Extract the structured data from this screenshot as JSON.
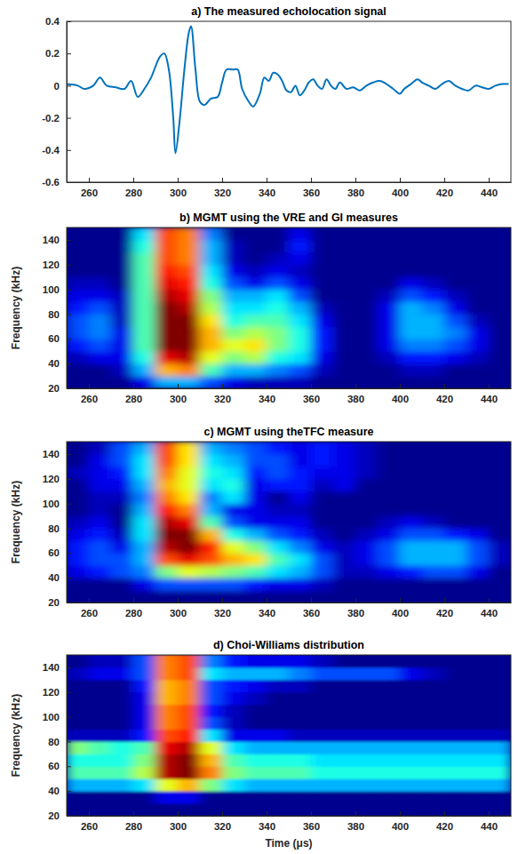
{
  "chart_data": [
    {
      "type": "line",
      "title": "a) The measured echolocation signal",
      "color": "#0072bd",
      "x": [
        250,
        255,
        258,
        262,
        265,
        268,
        272,
        276,
        279,
        282,
        285,
        288,
        292,
        294,
        296,
        298,
        299,
        301,
        303,
        305,
        306,
        308,
        310,
        312,
        315,
        318,
        320,
        322,
        325,
        327,
        329,
        332,
        334,
        337,
        339,
        341,
        343,
        345,
        347,
        349,
        351,
        353,
        355,
        357,
        359,
        361,
        363,
        365,
        367,
        369,
        371,
        373,
        376,
        379,
        382,
        385,
        388,
        391,
        394,
        397,
        400,
        402,
        405,
        408,
        410,
        413,
        416,
        419,
        422,
        425,
        428,
        431,
        434,
        437,
        440,
        443,
        446,
        449
      ],
      "values": [
        0.01,
        0,
        -0.02,
        0,
        0.05,
        0,
        -0.01,
        -0.02,
        0.03,
        -0.07,
        -0.02,
        0.05,
        0.18,
        0.2,
        0.1,
        -0.2,
        -0.42,
        -0.2,
        0.1,
        0.33,
        0.37,
        0.1,
        -0.1,
        -0.12,
        -0.08,
        -0.07,
        0.02,
        0.1,
        0.1,
        0.1,
        -0.02,
        -0.1,
        -0.13,
        -0.05,
        0.05,
        0.03,
        0.08,
        0.07,
        0.03,
        -0.03,
        -0.04,
        0,
        -0.06,
        -0.03,
        0.02,
        0.04,
        0,
        -0.02,
        0.04,
        0,
        -0.02,
        0.02,
        -0.02,
        -0.01,
        -0.03,
        0,
        0.02,
        0.03,
        0.01,
        -0.02,
        -0.05,
        -0.02,
        0.01,
        0.04,
        0.02,
        0,
        -0.02,
        0.01,
        0.03,
        0,
        -0.02,
        -0.03,
        0,
        -0.01,
        -0.02,
        0,
        0.01,
        0.01
      ],
      "xlim": [
        250,
        450
      ],
      "ylim": [
        -0.6,
        0.4
      ],
      "xticks": [
        260,
        280,
        300,
        320,
        340,
        360,
        380,
        400,
        420,
        440
      ],
      "yticks": [
        -0.6,
        -0.4,
        -0.2,
        0,
        0.2,
        0.4
      ]
    },
    {
      "type": "heatmap",
      "title": "b) MGMT using the VRE and GI measures",
      "ylabel": "Frequency (kHz)",
      "xbins": [
        250,
        260,
        270,
        280,
        290,
        300,
        310,
        320,
        330,
        340,
        350,
        360,
        370,
        380,
        390,
        400,
        410,
        420,
        430,
        440,
        450
      ],
      "ybins": [
        20,
        30,
        40,
        50,
        60,
        70,
        80,
        90,
        100,
        110,
        120,
        130,
        140,
        150
      ],
      "z": [
        [
          0,
          0,
          0,
          0.1,
          0.3,
          0.3,
          0.2,
          0.1,
          0.05,
          0.05,
          0.05,
          0,
          0,
          0,
          0,
          0,
          0,
          0,
          0,
          0
        ],
        [
          0,
          0,
          0.05,
          0.3,
          0.7,
          0.75,
          0.45,
          0.3,
          0.3,
          0.25,
          0.2,
          0.05,
          0,
          0,
          0,
          0.05,
          0.05,
          0,
          0,
          0
        ],
        [
          0.05,
          0.1,
          0.1,
          0.4,
          0.9,
          0.95,
          0.6,
          0.5,
          0.55,
          0.4,
          0.35,
          0.1,
          0,
          0,
          0.05,
          0.15,
          0.15,
          0.1,
          0.05,
          0
        ],
        [
          0.15,
          0.2,
          0.1,
          0.45,
          1,
          1,
          0.7,
          0.6,
          0.65,
          0.5,
          0.4,
          0.15,
          0,
          0,
          0.1,
          0.25,
          0.25,
          0.2,
          0.1,
          0
        ],
        [
          0.2,
          0.25,
          0.1,
          0.45,
          1,
          1,
          0.7,
          0.5,
          0.55,
          0.5,
          0.4,
          0.15,
          0,
          0,
          0.1,
          0.3,
          0.3,
          0.25,
          0.1,
          0
        ],
        [
          0.2,
          0.25,
          0.05,
          0.45,
          1,
          1,
          0.65,
          0.4,
          0.45,
          0.45,
          0.35,
          0.1,
          0,
          0,
          0.1,
          0.3,
          0.3,
          0.2,
          0.05,
          0
        ],
        [
          0.15,
          0.2,
          0.05,
          0.45,
          1,
          0.95,
          0.55,
          0.35,
          0.35,
          0.4,
          0.3,
          0.05,
          0,
          0,
          0.1,
          0.3,
          0.25,
          0.1,
          0,
          0
        ],
        [
          0.1,
          0.1,
          0.05,
          0.45,
          0.95,
          0.9,
          0.5,
          0.3,
          0.3,
          0.35,
          0.2,
          0,
          0,
          0,
          0.05,
          0.2,
          0.15,
          0.05,
          0,
          0
        ],
        [
          0.05,
          0.05,
          0,
          0.45,
          0.9,
          0.85,
          0.4,
          0.2,
          0.1,
          0.2,
          0.1,
          0,
          0,
          0,
          0,
          0.1,
          0.05,
          0,
          0,
          0
        ],
        [
          0,
          0,
          0,
          0.45,
          0.85,
          0.8,
          0.35,
          0.1,
          0.05,
          0.1,
          0.05,
          0,
          0,
          0,
          0,
          0,
          0,
          0,
          0,
          0
        ],
        [
          0,
          0,
          0,
          0.45,
          0.8,
          0.75,
          0.3,
          0.05,
          0,
          0.05,
          0.1,
          0,
          0,
          0,
          0,
          0,
          0,
          0,
          0,
          0
        ],
        [
          0,
          0,
          0,
          0.4,
          0.8,
          0.75,
          0.3,
          0.05,
          0,
          0,
          0.15,
          0,
          0,
          0,
          0,
          0,
          0,
          0,
          0,
          0
        ],
        [
          0,
          0,
          0,
          0.35,
          0.8,
          0.75,
          0.25,
          0,
          0,
          0,
          0.1,
          0,
          0,
          0,
          0,
          0,
          0,
          0,
          0,
          0
        ]
      ],
      "zlim": [
        0,
        1
      ],
      "xlim": [
        250,
        450
      ],
      "ylim": [
        20,
        150
      ],
      "xticks": [
        260,
        280,
        300,
        320,
        340,
        360,
        380,
        400,
        420,
        440
      ],
      "yticks": [
        20,
        40,
        60,
        80,
        100,
        120,
        140
      ]
    },
    {
      "type": "heatmap",
      "title": "c) MGMT using theTFC measure",
      "ylabel": "Frequency (kHz)",
      "xbins": [
        250,
        260,
        270,
        280,
        290,
        300,
        310,
        320,
        330,
        340,
        350,
        360,
        370,
        380,
        390,
        400,
        410,
        420,
        430,
        440,
        450
      ],
      "ybins": [
        20,
        30,
        40,
        50,
        60,
        70,
        80,
        90,
        100,
        110,
        120,
        130,
        140,
        150
      ],
      "z": [
        [
          0,
          0,
          0,
          0,
          0,
          0,
          0,
          0,
          0,
          0,
          0,
          0,
          0,
          0,
          0,
          0,
          0,
          0,
          0,
          0
        ],
        [
          0,
          0,
          0,
          0.1,
          0.2,
          0.2,
          0.2,
          0.2,
          0.15,
          0.1,
          0.1,
          0.05,
          0,
          0,
          0,
          0,
          0,
          0,
          0,
          0
        ],
        [
          0.1,
          0.15,
          0.2,
          0.25,
          0.5,
          0.6,
          0.55,
          0.5,
          0.45,
          0.35,
          0.3,
          0.2,
          0.05,
          0.05,
          0.1,
          0.15,
          0.2,
          0.2,
          0.1,
          0
        ],
        [
          0.15,
          0.2,
          0.2,
          0.3,
          0.8,
          0.9,
          0.8,
          0.7,
          0.65,
          0.45,
          0.35,
          0.2,
          0.05,
          0.1,
          0.2,
          0.3,
          0.3,
          0.3,
          0.2,
          0.05
        ],
        [
          0.15,
          0.2,
          0.1,
          0.3,
          0.95,
          1,
          0.85,
          0.6,
          0.5,
          0.35,
          0.25,
          0.1,
          0.05,
          0.1,
          0.2,
          0.3,
          0.3,
          0.3,
          0.2,
          0.05
        ],
        [
          0.1,
          0.15,
          0.05,
          0.35,
          1,
          1,
          0.7,
          0.4,
          0.3,
          0.2,
          0.15,
          0.05,
          0,
          0.05,
          0.1,
          0.2,
          0.2,
          0.15,
          0.1,
          0
        ],
        [
          0.05,
          0.1,
          0,
          0.35,
          0.95,
          0.9,
          0.45,
          0.2,
          0.1,
          0.1,
          0.1,
          0,
          0,
          0,
          0.05,
          0.1,
          0.05,
          0,
          0,
          0
        ],
        [
          0,
          0.05,
          0,
          0.3,
          0.85,
          0.75,
          0.3,
          0.1,
          0.1,
          0.05,
          0.05,
          0,
          0,
          0,
          0,
          0,
          0,
          0,
          0,
          0
        ],
        [
          0,
          0.05,
          0.05,
          0.25,
          0.75,
          0.65,
          0.25,
          0.35,
          0.1,
          0,
          0.1,
          0,
          0,
          0,
          0,
          0,
          0,
          0,
          0,
          0
        ],
        [
          0,
          0.1,
          0.1,
          0.3,
          0.7,
          0.6,
          0.35,
          0.4,
          0.1,
          0.15,
          0.15,
          0.05,
          0.1,
          0,
          0,
          0,
          0,
          0,
          0,
          0
        ],
        [
          0.05,
          0.1,
          0.15,
          0.35,
          0.75,
          0.6,
          0.4,
          0.35,
          0.15,
          0.2,
          0.15,
          0.1,
          0.1,
          0.05,
          0,
          0,
          0,
          0,
          0,
          0
        ],
        [
          0,
          0.1,
          0.2,
          0.35,
          0.8,
          0.65,
          0.35,
          0.3,
          0.2,
          0.2,
          0.1,
          0.15,
          0.1,
          0.05,
          0,
          0,
          0,
          0,
          0,
          0
        ],
        [
          0,
          0.05,
          0.2,
          0.3,
          0.8,
          0.65,
          0.3,
          0.25,
          0.2,
          0.15,
          0.1,
          0.15,
          0.1,
          0.05,
          0,
          0,
          0,
          0,
          0,
          0
        ]
      ],
      "zlim": [
        0,
        1
      ],
      "xlim": [
        250,
        450
      ],
      "ylim": [
        20,
        150
      ],
      "xticks": [
        260,
        280,
        300,
        320,
        340,
        360,
        380,
        400,
        420,
        440
      ],
      "yticks": [
        20,
        40,
        60,
        80,
        100,
        120,
        140
      ]
    },
    {
      "type": "heatmap",
      "title": "d) Choi-Williams distribution",
      "xlabel": "Time (μs)",
      "ylabel": "Frequency (kHz)",
      "xbins": [
        250,
        260,
        270,
        280,
        290,
        300,
        310,
        320,
        330,
        340,
        350,
        360,
        370,
        380,
        390,
        400,
        410,
        420,
        430,
        440,
        450
      ],
      "ybins": [
        20,
        30,
        40,
        50,
        60,
        70,
        80,
        90,
        100,
        110,
        120,
        130,
        140,
        150
      ],
      "z": [
        [
          0,
          0,
          0,
          0,
          0,
          0,
          0,
          0,
          0,
          0,
          0,
          0,
          0,
          0,
          0,
          0,
          0,
          0,
          0,
          0
        ],
        [
          0,
          0,
          0,
          0,
          0.1,
          0.1,
          0,
          0,
          0,
          0,
          0,
          0,
          0,
          0,
          0,
          0,
          0,
          0,
          0,
          0
        ],
        [
          0.3,
          0.3,
          0.3,
          0.35,
          0.6,
          0.7,
          0.5,
          0.35,
          0.3,
          0.3,
          0.3,
          0.3,
          0.3,
          0.3,
          0.3,
          0.3,
          0.3,
          0.3,
          0.3,
          0.3
        ],
        [
          0.45,
          0.45,
          0.45,
          0.55,
          0.95,
          1,
          0.75,
          0.5,
          0.45,
          0.45,
          0.45,
          0.4,
          0.4,
          0.4,
          0.4,
          0.4,
          0.4,
          0.4,
          0.4,
          0.4
        ],
        [
          0.4,
          0.4,
          0.4,
          0.5,
          0.95,
          1,
          0.7,
          0.45,
          0.4,
          0.4,
          0.4,
          0.35,
          0.35,
          0.35,
          0.35,
          0.35,
          0.35,
          0.35,
          0.35,
          0.35
        ],
        [
          0.5,
          0.45,
          0.4,
          0.45,
          0.9,
          0.95,
          0.6,
          0.35,
          0.3,
          0.3,
          0.3,
          0.3,
          0.3,
          0.3,
          0.3,
          0.3,
          0.3,
          0.3,
          0.3,
          0.3
        ],
        [
          0.05,
          0.05,
          0.05,
          0.15,
          0.8,
          0.85,
          0.35,
          0.1,
          0.1,
          0.1,
          0.05,
          0.05,
          0.05,
          0.05,
          0.05,
          0.05,
          0.05,
          0.05,
          0.05,
          0.05
        ],
        [
          0,
          0,
          0,
          0.1,
          0.75,
          0.8,
          0.2,
          0.05,
          0,
          0,
          0,
          0,
          0,
          0,
          0,
          0,
          0,
          0,
          0,
          0
        ],
        [
          0,
          0,
          0,
          0.1,
          0.75,
          0.8,
          0.15,
          0.05,
          0,
          0,
          0,
          0,
          0,
          0,
          0,
          0,
          0,
          0,
          0,
          0
        ],
        [
          0,
          0,
          0,
          0.1,
          0.7,
          0.75,
          0.2,
          0.1,
          0.05,
          0,
          0,
          0,
          0,
          0,
          0,
          0,
          0,
          0,
          0,
          0
        ],
        [
          0,
          0,
          0,
          0.15,
          0.7,
          0.75,
          0.2,
          0.15,
          0.1,
          0.05,
          0.05,
          0,
          0,
          0,
          0,
          0,
          0,
          0,
          0,
          0
        ],
        [
          0.05,
          0.1,
          0.1,
          0.2,
          0.75,
          0.8,
          0.35,
          0.3,
          0.3,
          0.3,
          0.25,
          0.2,
          0.2,
          0.2,
          0.2,
          0.1,
          0.05,
          0,
          0,
          0
        ],
        [
          0,
          0.05,
          0.05,
          0.2,
          0.75,
          0.8,
          0.25,
          0.15,
          0.1,
          0.1,
          0.1,
          0.05,
          0,
          0,
          0,
          0,
          0,
          0,
          0,
          0
        ]
      ],
      "zlim": [
        0,
        1
      ],
      "xlim": [
        250,
        450
      ],
      "ylim": [
        20,
        150
      ],
      "xticks": [
        260,
        280,
        300,
        320,
        340,
        360,
        380,
        400,
        420,
        440
      ],
      "yticks": [
        20,
        40,
        60,
        80,
        100,
        120,
        140
      ]
    }
  ]
}
